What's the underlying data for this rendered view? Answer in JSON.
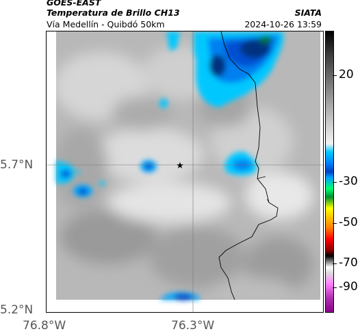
{
  "header": {
    "satellite": "GOES-EAST",
    "product": "Temperatura de Brillo CH13",
    "region": "Vía Medellín - Quibdó 50km",
    "organization": "SIATA",
    "datetime": "2024-10-26 13:59"
  },
  "axes": {
    "lat_labels": [
      "5.7°N",
      "5.2°N"
    ],
    "lon_labels": [
      "76.8°W",
      "76.3°W"
    ]
  },
  "colorbar": {
    "labels": [
      "20",
      "-30",
      "-50",
      "-70",
      "-90"
    ],
    "units_hidden": true
  },
  "colors": {
    "cloud_cyan": "#00c8ff",
    "cloud_blue": "#0050d0",
    "cloud_dark": "#003080",
    "cloud_green": "#007030",
    "grey_base": "#b4b4b4"
  },
  "marker": {
    "symbol": "★"
  }
}
